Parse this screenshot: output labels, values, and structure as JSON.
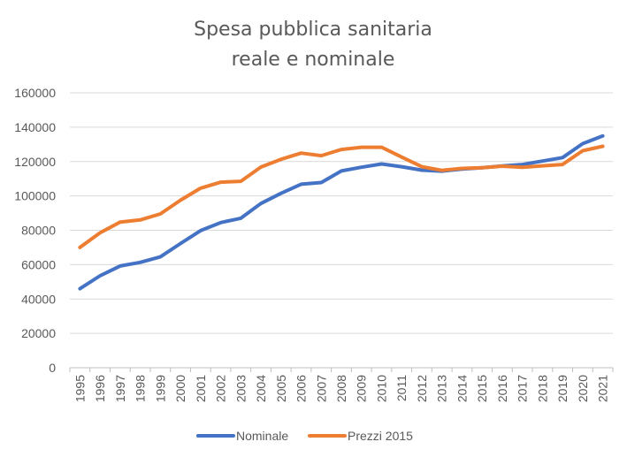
{
  "chart_data": {
    "type": "line",
    "title_lines": [
      "Spesa pubblica sanitaria",
      "reale e nominale"
    ],
    "xlabel": "",
    "ylabel": "",
    "x": [
      "1995",
      "1996",
      "1997",
      "1998",
      "1999",
      "2000",
      "2001",
      "2002",
      "2003",
      "2004",
      "2005",
      "2006",
      "2007",
      "2008",
      "2009",
      "2010",
      "2011",
      "2012",
      "2013",
      "2014",
      "2015",
      "2016",
      "2017",
      "2018",
      "2019",
      "2020",
      "2021"
    ],
    "ylim": [
      0,
      160000
    ],
    "yticks": [
      "0",
      "20000",
      "40000",
      "60000",
      "80000",
      "100000",
      "120000",
      "140000",
      "160000"
    ],
    "grid": true,
    "legend_position": "bottom",
    "series": [
      {
        "name": "Nominale",
        "color": "#4472c4",
        "values": [
          46000,
          53500,
          59200,
          61300,
          64500,
          72300,
          79800,
          84500,
          87000,
          95600,
          101500,
          106800,
          107800,
          114500,
          116700,
          118600,
          117000,
          115000,
          114400,
          115600,
          116400,
          117400,
          118300,
          120300,
          122300,
          130400,
          134900
        ]
      },
      {
        "name": "Prezzi 2015",
        "color": "#ed7d31",
        "values": [
          70000,
          78500,
          84800,
          86000,
          89500,
          97500,
          104500,
          108000,
          108500,
          116800,
          121300,
          124900,
          123400,
          127000,
          128300,
          128300,
          122600,
          117000,
          114900,
          116000,
          116400,
          117300,
          116700,
          117500,
          118300,
          126300,
          128900
        ]
      }
    ]
  }
}
